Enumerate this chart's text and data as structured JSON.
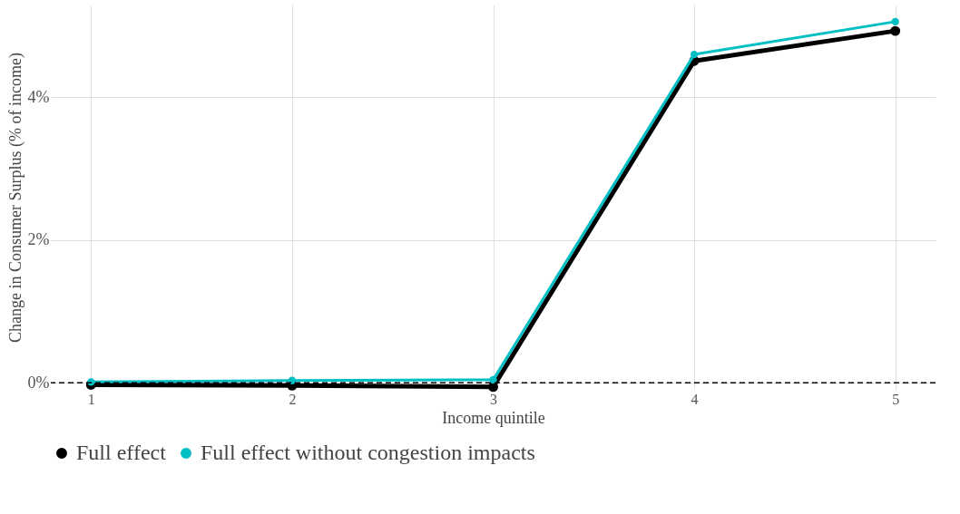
{
  "chart_data": {
    "type": "line",
    "xlabel": "Income quintile",
    "ylabel": "Change in Consumer Surplus (% of income)",
    "x": [
      1,
      2,
      3,
      4,
      5
    ],
    "series": [
      {
        "name": "Full effect",
        "color": "#000000",
        "values": [
          -0.03,
          -0.04,
          -0.06,
          4.51,
          4.93
        ]
      },
      {
        "name": "Full effect without congestion impacts",
        "color": "#00bfc4",
        "values": [
          0.01,
          0.03,
          0.04,
          4.6,
          5.06
        ]
      }
    ],
    "xlim": [
      0.8,
      5.2
    ],
    "xticks": [
      1,
      2,
      3,
      4,
      5
    ],
    "ylim": [
      -0.1,
      5.3
    ],
    "yticks": [
      {
        "value": 0,
        "label": "0%"
      },
      {
        "value": 2,
        "label": "2%"
      },
      {
        "value": 4,
        "label": "4%"
      }
    ],
    "ref_lines": [
      {
        "axis": "y",
        "value": 0,
        "color": "#000000",
        "line_style": "dashed"
      }
    ],
    "grid": true,
    "legend": "bottom",
    "marker": "circle",
    "line_style": "solid"
  }
}
